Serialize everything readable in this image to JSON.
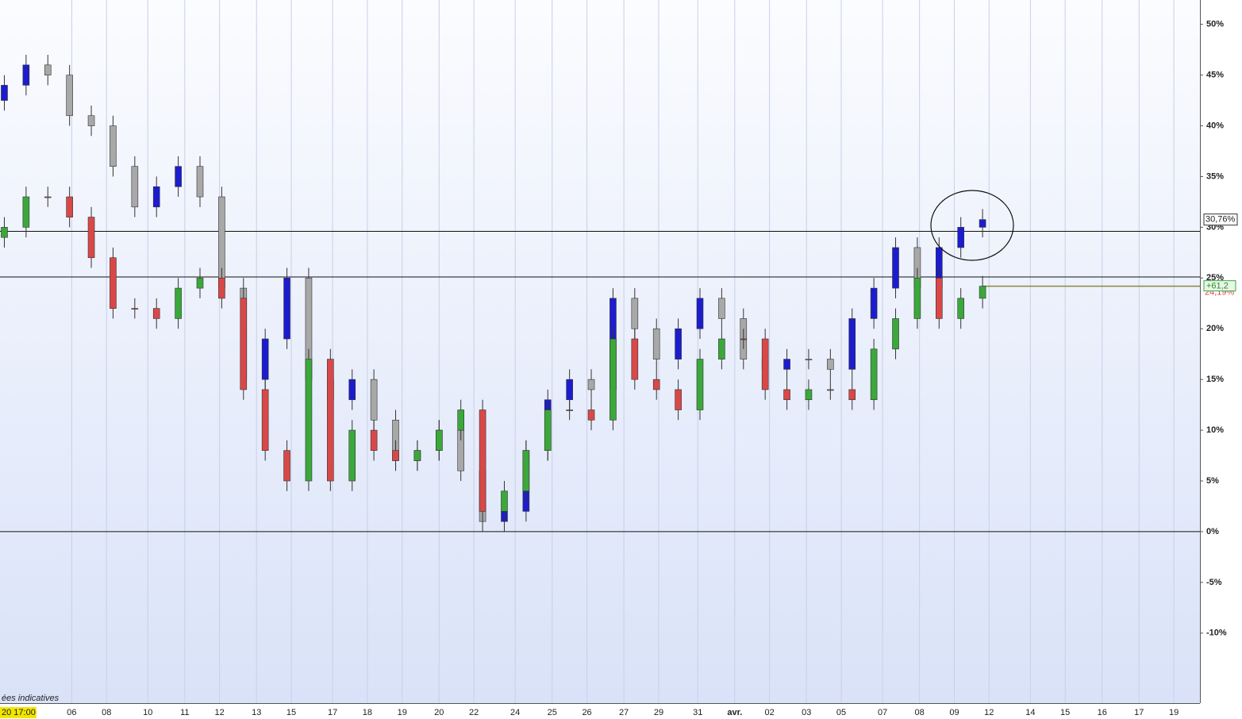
{
  "chart_data": {
    "type": "candlestick",
    "start_label": "20 17:00",
    "footnote": "ées indicatives",
    "ylim": [
      -16.9,
      52.4
    ],
    "yticks": [
      {
        "value": -10,
        "label": "-10%"
      },
      {
        "value": -5,
        "label": "-5%"
      },
      {
        "value": 0,
        "label": "0%"
      },
      {
        "value": 5,
        "label": "5%"
      },
      {
        "value": 10,
        "label": "10%"
      },
      {
        "value": 15,
        "label": "15%"
      },
      {
        "value": 20,
        "label": "20%"
      },
      {
        "value": 25,
        "label": "25%"
      },
      {
        "value": 30,
        "label": "30%"
      },
      {
        "value": 35,
        "label": "35%"
      },
      {
        "value": 40,
        "label": "40%"
      },
      {
        "value": 45,
        "label": "45%"
      },
      {
        "value": 50,
        "label": "50%"
      }
    ],
    "xlim": [
      -0.2,
      55
    ],
    "xticks": [
      {
        "value": 3.1,
        "label": "06"
      },
      {
        "value": 4.7,
        "label": "08"
      },
      {
        "value": 6.6,
        "label": "10"
      },
      {
        "value": 8.3,
        "label": "11"
      },
      {
        "value": 9.9,
        "label": "12"
      },
      {
        "value": 11.6,
        "label": "13"
      },
      {
        "value": 13.2,
        "label": "15"
      },
      {
        "value": 15.1,
        "label": "17"
      },
      {
        "value": 16.7,
        "label": "18"
      },
      {
        "value": 18.3,
        "label": "19"
      },
      {
        "value": 20.0,
        "label": "20"
      },
      {
        "value": 21.6,
        "label": "22"
      },
      {
        "value": 23.5,
        "label": "24"
      },
      {
        "value": 25.2,
        "label": "25"
      },
      {
        "value": 26.8,
        "label": "26"
      },
      {
        "value": 28.5,
        "label": "27"
      },
      {
        "value": 30.1,
        "label": "29"
      },
      {
        "value": 31.9,
        "label": "31"
      },
      {
        "value": 33.6,
        "label": "avr."
      },
      {
        "value": 35.2,
        "label": "02"
      },
      {
        "value": 36.9,
        "label": "03"
      },
      {
        "value": 38.5,
        "label": "05"
      },
      {
        "value": 40.4,
        "label": "07"
      },
      {
        "value": 42.1,
        "label": "08"
      },
      {
        "value": 43.7,
        "label": "09"
      },
      {
        "value": 45.3,
        "label": "12"
      },
      {
        "value": 47.2,
        "label": "14"
      },
      {
        "value": 48.8,
        "label": "15"
      },
      {
        "value": 50.5,
        "label": "16"
      },
      {
        "value": 52.2,
        "label": "17"
      },
      {
        "value": 53.8,
        "label": "19"
      }
    ],
    "grid": true,
    "hlines": [
      29.6,
      25.1,
      0
    ],
    "series": [
      {
        "color_up": "#1c1ccf",
        "color_down": "#a8a8a8",
        "open": [
          42.5,
          44,
          46,
          45,
          41,
          40,
          36,
          32,
          34,
          36,
          33,
          24,
          15,
          19,
          25,
          15,
          13,
          15,
          11,
          7,
          8,
          10,
          6,
          1,
          2,
          8,
          13,
          15,
          14,
          23,
          20,
          17,
          20,
          23,
          21,
          17,
          16,
          17,
          17,
          16,
          21,
          24,
          28,
          24,
          28,
          30
        ],
        "high": [
          45,
          47,
          47,
          46,
          42,
          41,
          37,
          35,
          37,
          37,
          34,
          25,
          20,
          26,
          26,
          16,
          16,
          16,
          12,
          9,
          11,
          11,
          7,
          3,
          9,
          14,
          16,
          16,
          24,
          24,
          21,
          21,
          24,
          24,
          22,
          18,
          18,
          18,
          18,
          22,
          25,
          29,
          29,
          29,
          31,
          31.8
        ],
        "low": [
          41.5,
          43,
          44,
          40,
          39,
          35,
          31,
          31,
          33,
          32,
          23,
          14,
          14,
          18,
          14,
          12,
          12,
          10,
          6,
          6,
          7,
          5,
          0,
          0,
          1,
          7,
          12,
          13,
          13,
          19,
          16,
          16,
          19,
          20,
          16,
          15,
          15,
          16,
          15,
          15,
          20,
          23,
          23,
          23,
          27,
          29
        ],
        "close": [
          44,
          46,
          45,
          41,
          40,
          36,
          32,
          34,
          36,
          33,
          24,
          15,
          19,
          25,
          15,
          13,
          15,
          11,
          7,
          8,
          10,
          6,
          1,
          2,
          8,
          13,
          15,
          14,
          23,
          20,
          17,
          20,
          23,
          21,
          17,
          16,
          17,
          17,
          16,
          21,
          24,
          28,
          24,
          28,
          30,
          30.76
        ],
        "last_label": "30,76%"
      },
      {
        "color_up": "#3aa83a",
        "color_down": "#d94848",
        "open": [
          29,
          30,
          33,
          33,
          31,
          27,
          22,
          22,
          21,
          24,
          25,
          23,
          14,
          8,
          5,
          17,
          5,
          10,
          8,
          7,
          8,
          10,
          12,
          2,
          4,
          8,
          12,
          12,
          11,
          19,
          15,
          14,
          12,
          17,
          19,
          19,
          14,
          13,
          14,
          14,
          13,
          18,
          21,
          25,
          21,
          23
        ],
        "high": [
          31,
          34,
          34,
          34,
          32,
          28,
          23,
          23,
          25,
          26,
          26,
          24,
          15,
          9,
          18,
          18,
          11,
          11,
          9,
          9,
          11,
          13,
          13,
          5,
          9,
          13,
          13,
          13,
          20,
          20,
          16,
          15,
          18,
          20,
          20,
          20,
          15,
          15,
          15,
          15,
          19,
          22,
          26,
          26,
          24,
          25.2
        ],
        "low": [
          28,
          29,
          32,
          30,
          26,
          21,
          21,
          20,
          20,
          23,
          22,
          13,
          7,
          4,
          4,
          4,
          4,
          7,
          6,
          6,
          7,
          9,
          1,
          1,
          3,
          7,
          11,
          10,
          10,
          14,
          13,
          11,
          11,
          16,
          18,
          13,
          12,
          12,
          13,
          12,
          12,
          17,
          20,
          20,
          20,
          22
        ],
        "close": [
          30,
          33,
          33,
          31,
          27,
          22,
          22,
          21,
          24,
          25,
          23,
          14,
          8,
          5,
          17,
          5,
          10,
          8,
          7,
          8,
          10,
          12,
          2,
          4,
          8,
          12,
          12,
          11,
          19,
          15,
          14,
          12,
          17,
          19,
          19,
          14,
          13,
          14,
          14,
          13,
          18,
          21,
          25,
          21,
          23,
          24.19
        ],
        "last_label": "24,19%",
        "badge": "+61,2"
      }
    ]
  }
}
